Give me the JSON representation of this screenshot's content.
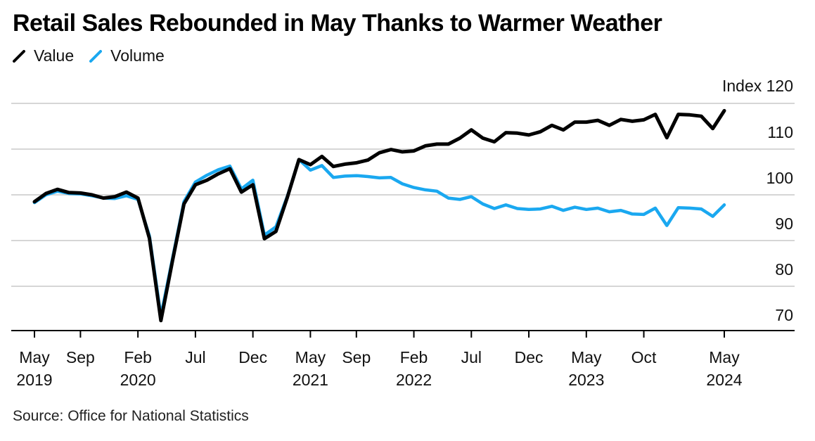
{
  "title": "Retail Sales Rebounded in May Thanks to Warmer Weather",
  "source": "Source: Office for National Statistics",
  "legend": [
    {
      "label": "Value",
      "color": "#000000"
    },
    {
      "label": "Volume",
      "color": "#1aa8f0"
    }
  ],
  "chart_data": {
    "type": "line",
    "title": "Retail Sales Rebounded in May Thanks to Warmer Weather",
    "ylabel": "Index",
    "y_unit_label": "Index",
    "ylim": [
      70,
      120
    ],
    "yticks": [
      70,
      80,
      90,
      100,
      110,
      120
    ],
    "x_start": "2019-05",
    "x_end": "2024-05",
    "xticks": [
      {
        "index": 0,
        "month": "May",
        "year": "2019"
      },
      {
        "index": 4,
        "month": "Sep",
        "year": ""
      },
      {
        "index": 9,
        "month": "Feb",
        "year": "2020"
      },
      {
        "index": 14,
        "month": "Jul",
        "year": ""
      },
      {
        "index": 19,
        "month": "Dec",
        "year": ""
      },
      {
        "index": 24,
        "month": "May",
        "year": "2021"
      },
      {
        "index": 28,
        "month": "Sep",
        "year": ""
      },
      {
        "index": 33,
        "month": "Feb",
        "year": "2022"
      },
      {
        "index": 38,
        "month": "Jul",
        "year": ""
      },
      {
        "index": 43,
        "month": "Dec",
        "year": ""
      },
      {
        "index": 48,
        "month": "May",
        "year": "2023"
      },
      {
        "index": 53,
        "month": "Oct",
        "year": ""
      },
      {
        "index": 60,
        "month": "May",
        "year": "2024"
      }
    ],
    "series": [
      {
        "name": "Value",
        "color": "#000000",
        "values": [
          98.5,
          100.3,
          101.2,
          100.5,
          100.4,
          100.0,
          99.3,
          99.6,
          100.6,
          99.3,
          90.5,
          72.5,
          85.5,
          98.0,
          102.2,
          103.2,
          104.6,
          105.7,
          100.6,
          102.2,
          90.4,
          92.0,
          99.5,
          107.7,
          106.6,
          108.4,
          106.2,
          106.7,
          107.0,
          107.6,
          109.2,
          109.9,
          109.4,
          109.6,
          110.7,
          111.1,
          111.1,
          112.4,
          114.2,
          112.4,
          111.6,
          113.6,
          113.5,
          113.1,
          113.8,
          115.2,
          114.2,
          115.9,
          115.9,
          116.3,
          115.2,
          116.5,
          116.1,
          116.4,
          117.6,
          112.5,
          117.6,
          117.5,
          117.2,
          114.5,
          118.4
        ]
      },
      {
        "name": "Volume",
        "color": "#1aa8f0",
        "values": [
          98.3,
          100.0,
          100.8,
          100.3,
          100.2,
          99.8,
          99.3,
          99.2,
          99.8,
          99.0,
          91.0,
          73.5,
          86.0,
          98.5,
          102.8,
          104.3,
          105.5,
          106.3,
          101.3,
          103.2,
          91.2,
          93.0,
          99.7,
          107.7,
          105.4,
          106.4,
          103.8,
          104.1,
          104.2,
          104.0,
          103.7,
          103.8,
          102.4,
          101.6,
          101.1,
          100.8,
          99.3,
          99.0,
          99.6,
          98.0,
          97.0,
          97.8,
          97.0,
          96.8,
          96.9,
          97.5,
          96.6,
          97.3,
          96.8,
          97.1,
          96.3,
          96.6,
          95.8,
          95.7,
          97.1,
          93.3,
          97.2,
          97.1,
          96.9,
          95.3,
          97.8
        ]
      }
    ]
  }
}
